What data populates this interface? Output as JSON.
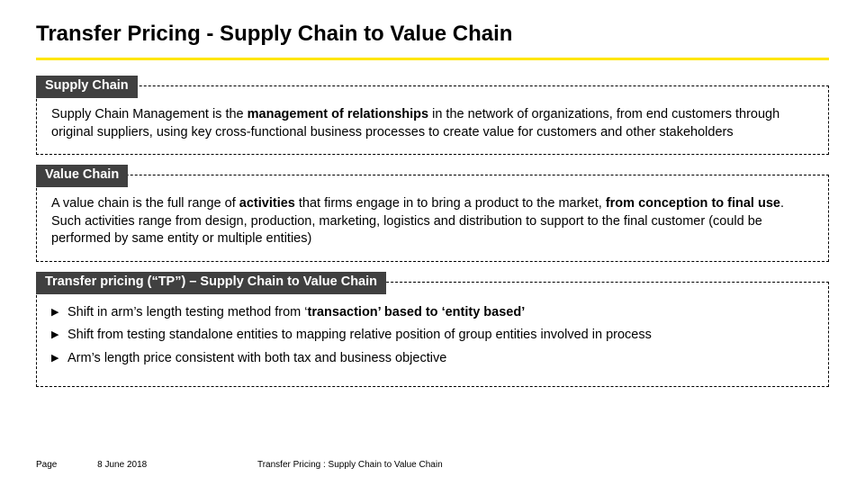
{
  "title": "Transfer Pricing - Supply Chain to Value Chain",
  "accent_color": "#ffe600",
  "tab_bg": "#404040",
  "tab_fg": "#ffffff",
  "box_border": "#000000",
  "block1": {
    "tab": "Supply Chain",
    "body_html": "Supply Chain Management is the <b>management of relationships</b> in the network of organizations, from end customers through original suppliers, using key cross-functional business processes to create value for customers and other stakeholders"
  },
  "block2": {
    "tab": "Value Chain",
    "body_html": "A value chain is the full range of <b>activities</b> that firms engage in to bring a product to the market, <b>from conception to final use</b>. Such activities range from design, production, marketing, logistics and distribution to support to the final customer (could be performed by same entity or multiple entities)"
  },
  "block3": {
    "tab": "Transfer pricing (“TP”) – Supply Chain to Value Chain",
    "items": [
      "Shift in arm’s length testing method from ‘<b>transaction’ based to ‘entity based’</b>",
      "Shift from testing standalone entities to mapping relative position of group entities involved in process",
      "Arm’s length price consistent with both tax and business objective"
    ]
  },
  "footer": {
    "page_label": "Page",
    "date": "8 June 2018",
    "title": "Transfer Pricing : Supply Chain to Value Chain"
  }
}
